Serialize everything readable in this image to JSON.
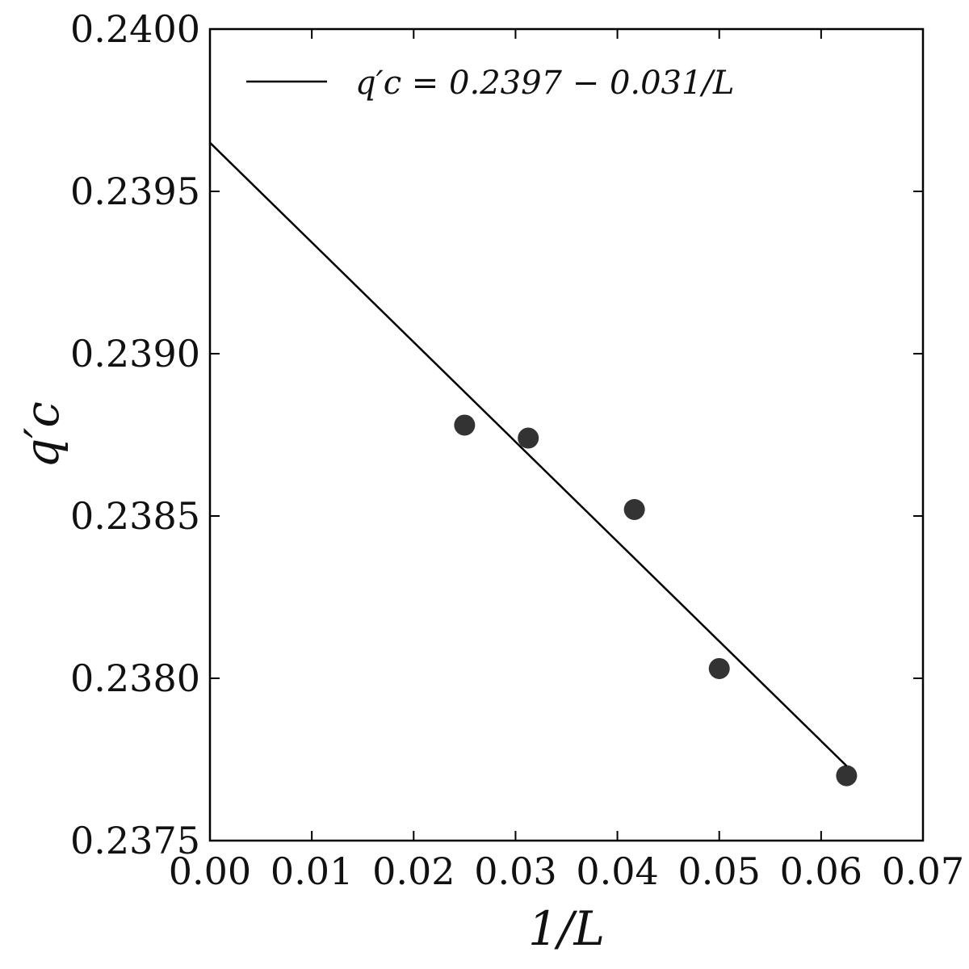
{
  "chart_data": {
    "type": "scatter",
    "xlabel": "1/L",
    "ylabel": "q′c",
    "xlim": [
      0.0,
      0.07
    ],
    "ylim": [
      0.2375,
      0.24
    ],
    "x_ticks": [
      "0.00",
      "0.01",
      "0.02",
      "0.03",
      "0.04",
      "0.05",
      "0.06",
      "0.07"
    ],
    "y_ticks": [
      "0.2375",
      "0.2380",
      "0.2385",
      "0.2390",
      "0.2395",
      "0.2400"
    ],
    "grid": false,
    "legend_position": "top-left",
    "legend_label": "q′c = 0.2397 − 0.031/L",
    "series": [
      {
        "type": "scatter",
        "color": "#333333",
        "x": [
          0.025,
          0.03125,
          0.04167,
          0.05,
          0.0625
        ],
        "y": [
          0.23878,
          0.23874,
          0.23852,
          0.23803,
          0.2377
        ]
      },
      {
        "type": "line",
        "name": "q′c = 0.2397 − 0.031/L",
        "color": "#000000",
        "x": [
          0.0,
          0.0625
        ],
        "y": [
          0.23965,
          0.23773
        ]
      }
    ]
  }
}
